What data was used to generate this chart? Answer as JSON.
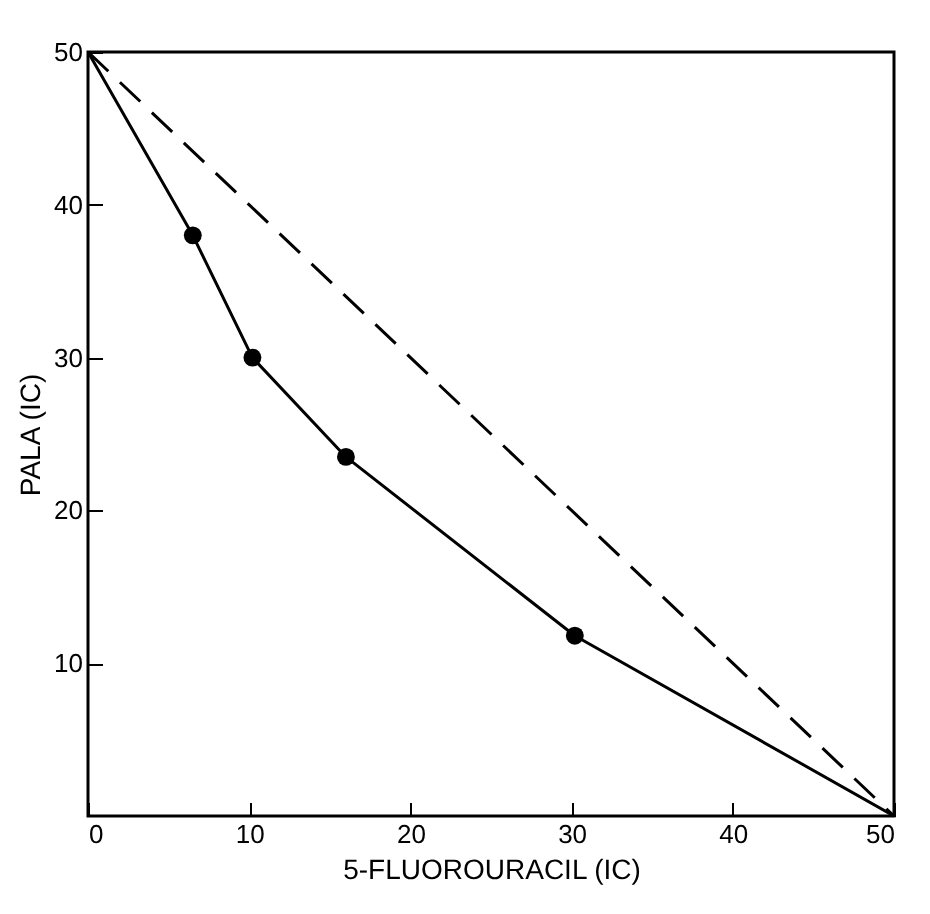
{
  "chart_data": {
    "type": "line",
    "xlabel": "5-FLUOROURACIL (IC)",
    "ylabel": "PALA (IC)",
    "xlim": [
      0,
      50
    ],
    "ylim": [
      0,
      50
    ],
    "xticks": [
      0,
      10,
      20,
      30,
      40,
      50
    ],
    "yticks": [
      10,
      20,
      30,
      40,
      50
    ],
    "grid": false,
    "series": [
      {
        "color": "#000000",
        "line_style": "dashed",
        "x": [
          0,
          50
        ],
        "values": [
          50,
          0
        ]
      },
      {
        "color": "#000000",
        "line_style": "solid",
        "x": [
          0,
          6.5,
          10.2,
          16,
          30.2,
          50
        ],
        "values": [
          50,
          38,
          30,
          23.5,
          11.8,
          0
        ]
      },
      {
        "type": "scatter",
        "color": "#000000",
        "marker": "circle",
        "x": [
          6.5,
          10.2,
          16,
          30.2
        ],
        "values": [
          38,
          30,
          23.5,
          11.8
        ]
      }
    ]
  }
}
